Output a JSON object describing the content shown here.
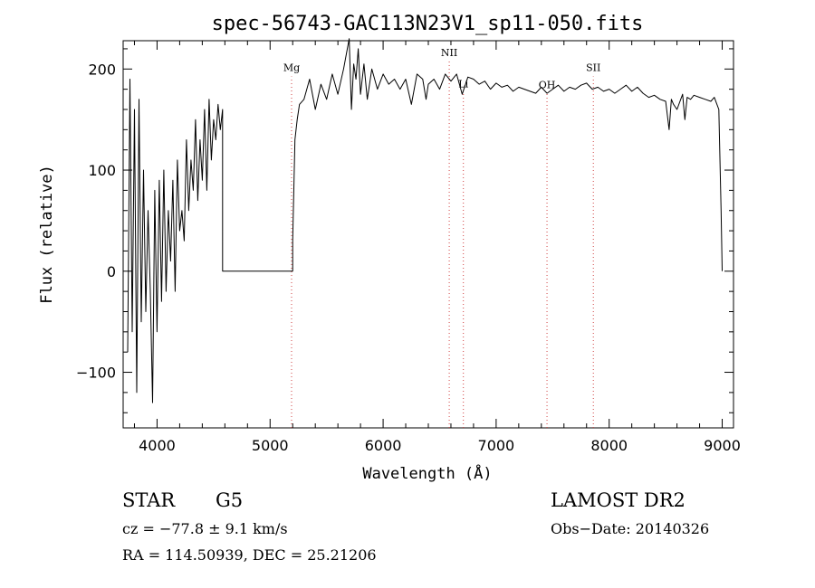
{
  "chart_data": {
    "type": "line",
    "title": "spec-56743-GAC113N23V1_sp11-050.fits",
    "xlabel": "Wavelength (Å)",
    "ylabel": "Flux (relative)",
    "xlim": [
      3700,
      9100
    ],
    "ylim": [
      -155,
      228
    ],
    "xticks": [
      {
        "value": 4000,
        "label": "4000"
      },
      {
        "value": 5000,
        "label": "5000"
      },
      {
        "value": 6000,
        "label": "6000"
      },
      {
        "value": 7000,
        "label": "7000"
      },
      {
        "value": 8000,
        "label": "8000"
      },
      {
        "value": 9000,
        "label": "9000"
      }
    ],
    "yticks": [
      {
        "value": -100,
        "label": "−100"
      },
      {
        "value": 0,
        "label": "0"
      },
      {
        "value": 100,
        "label": "100"
      },
      {
        "value": 200,
        "label": "200"
      }
    ],
    "lines": [
      {
        "label": "Mg",
        "x": 5190,
        "label_y": 198
      },
      {
        "label": "NII",
        "x": 6585,
        "label_y": 213
      },
      {
        "label": "Li",
        "x": 6710,
        "label_y": 182
      },
      {
        "label": "OH",
        "x": 7450,
        "label_y": 181
      },
      {
        "label": "SII",
        "x": 7860,
        "label_y": 198
      }
    ],
    "series": [
      {
        "color": "#000000",
        "x": [
          3740,
          3760,
          3780,
          3800,
          3820,
          3840,
          3860,
          3880,
          3900,
          3920,
          3940,
          3960,
          3980,
          4000,
          4020,
          4040,
          4060,
          4080,
          4100,
          4120,
          4140,
          4160,
          4180,
          4200,
          4220,
          4240,
          4260,
          4280,
          4300,
          4320,
          4340,
          4360,
          4380,
          4400,
          4420,
          4440,
          4460,
          4480,
          4500,
          4520,
          4540,
          4560,
          4580,
          4580,
          5200,
          5200,
          5220,
          5240,
          5260,
          5300,
          5350,
          5400,
          5450,
          5500,
          5550,
          5600,
          5650,
          5700,
          5720,
          5740,
          5760,
          5780,
          5800,
          5830,
          5860,
          5900,
          5950,
          6000,
          6050,
          6100,
          6150,
          6200,
          6250,
          6300,
          6350,
          6380,
          6400,
          6450,
          6500,
          6550,
          6600,
          6650,
          6700,
          6750,
          6800,
          6850,
          6900,
          6950,
          7000,
          7050,
          7100,
          7150,
          7200,
          7250,
          7300,
          7350,
          7400,
          7450,
          7500,
          7550,
          7600,
          7650,
          7700,
          7750,
          7800,
          7850,
          7900,
          7950,
          8000,
          8050,
          8100,
          8150,
          8200,
          8250,
          8300,
          8350,
          8400,
          8450,
          8500,
          8530,
          8550,
          8570,
          8600,
          8650,
          8670,
          8690,
          8720,
          8750,
          8800,
          8850,
          8900,
          8930,
          8950,
          8970,
          8990,
          9000
        ],
        "y": [
          -80,
          190,
          -60,
          160,
          -120,
          170,
          -50,
          100,
          -40,
          60,
          -20,
          -130,
          80,
          -60,
          90,
          -30,
          100,
          -20,
          60,
          10,
          90,
          -20,
          110,
          40,
          60,
          30,
          130,
          60,
          110,
          80,
          150,
          70,
          130,
          90,
          160,
          80,
          170,
          110,
          150,
          130,
          165,
          140,
          160,
          0,
          0,
          30,
          130,
          150,
          165,
          170,
          190,
          160,
          185,
          170,
          195,
          175,
          200,
          230,
          160,
          205,
          190,
          220,
          175,
          205,
          170,
          200,
          180,
          195,
          185,
          190,
          180,
          190,
          165,
          195,
          190,
          170,
          185,
          190,
          180,
          195,
          188,
          195,
          175,
          192,
          190,
          185,
          188,
          180,
          186,
          182,
          184,
          178,
          182,
          180,
          178,
          176,
          182,
          176,
          180,
          184,
          178,
          182,
          180,
          184,
          186,
          180,
          182,
          178,
          180,
          176,
          180,
          184,
          178,
          182,
          176,
          172,
          174,
          170,
          168,
          140,
          170,
          165,
          160,
          175,
          150,
          172,
          170,
          174,
          172,
          170,
          168,
          172,
          166,
          160,
          60,
          0
        ]
      }
    ]
  },
  "info": {
    "object_type": "STAR",
    "subclass": "G5",
    "redshift": "cz = −77.8 ± 9.1 km/s",
    "coords": "RA = 114.50939, DEC =  25.21206",
    "survey": "LAMOST DR2",
    "obs_date": "Obs−Date: 20140326"
  }
}
